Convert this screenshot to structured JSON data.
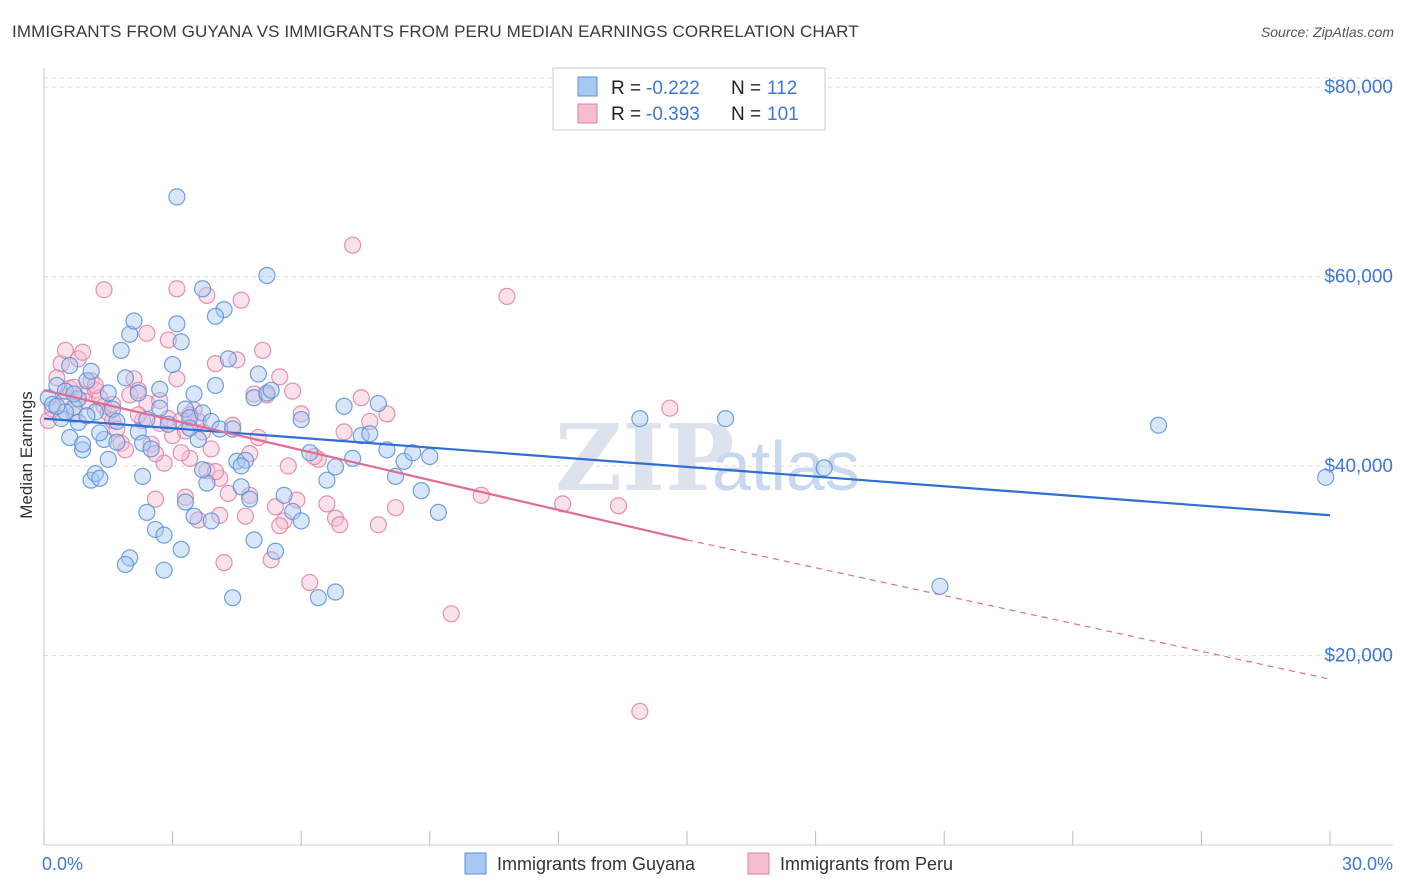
{
  "title": "IMMIGRANTS FROM GUYANA VS IMMIGRANTS FROM PERU MEDIAN EARNINGS CORRELATION CHART",
  "source": "Source: ZipAtlas.com",
  "watermark": {
    "part1": "ZIP",
    "part2": "atlas"
  },
  "legend": {
    "r_label": "R =",
    "n_label": "N =",
    "rows": [
      {
        "r": "-0.222",
        "n": "112"
      },
      {
        "r": "-0.393",
        "n": "101"
      }
    ]
  },
  "colors": {
    "guyana_fill": "#a9c8f2",
    "guyana_stroke": "#5a8fd8",
    "guyana_line": "#2f6fd0",
    "peru_fill": "#f6bcd0",
    "peru_stroke": "#e07fa2",
    "peru_line": "#e06d96",
    "grid": "#dddddd",
    "axis_text": "#3d78d6"
  },
  "chart_data": {
    "type": "scatter",
    "title": "IMMIGRANTS FROM GUYANA VS IMMIGRANTS FROM PERU MEDIAN EARNINGS CORRELATION CHART",
    "xlabel": "",
    "ylabel": "Median Earnings",
    "xlim": [
      0,
      30
    ],
    "ylim": [
      0,
      82000
    ],
    "x_tick_labels": [
      "0.0%",
      "30.0%"
    ],
    "y_ticks": [
      20000,
      40000,
      60000,
      80000
    ],
    "y_tick_labels": [
      "$20,000",
      "$40,000",
      "$60,000",
      "$80,000"
    ],
    "grid": true,
    "legend_position": "top-center",
    "series": [
      {
        "name": "Immigrants from Guyana",
        "r": -0.222,
        "n": 112,
        "trend": {
          "x": [
            0,
            30
          ],
          "y": [
            45000,
            34800
          ]
        },
        "points": [
          [
            0.1,
            47200
          ],
          [
            0.2,
            46500
          ],
          [
            0.3,
            48500
          ],
          [
            0.4,
            45000
          ],
          [
            0.5,
            47900
          ],
          [
            0.6,
            43000
          ],
          [
            0.7,
            46200
          ],
          [
            0.8,
            44600
          ],
          [
            0.9,
            41700
          ],
          [
            1.0,
            49000
          ],
          [
            1.1,
            38500
          ],
          [
            1.2,
            39200
          ],
          [
            1.3,
            38700
          ],
          [
            1.4,
            42800
          ],
          [
            1.5,
            47700
          ],
          [
            1.6,
            46000
          ],
          [
            1.7,
            44700
          ],
          [
            1.8,
            52200
          ],
          [
            1.9,
            49300
          ],
          [
            2.0,
            53900
          ],
          [
            2.1,
            55300
          ],
          [
            2.2,
            43600
          ],
          [
            2.3,
            42400
          ],
          [
            2.4,
            35100
          ],
          [
            2.5,
            41800
          ],
          [
            2.6,
            33300
          ],
          [
            2.7,
            48100
          ],
          [
            2.8,
            29000
          ],
          [
            2.9,
            44400
          ],
          [
            3.0,
            50700
          ],
          [
            3.1,
            55000
          ],
          [
            3.2,
            53100
          ],
          [
            3.3,
            46000
          ],
          [
            3.4,
            45100
          ],
          [
            3.5,
            47600
          ],
          [
            3.6,
            42800
          ],
          [
            3.7,
            45600
          ],
          [
            3.8,
            38200
          ],
          [
            3.9,
            44700
          ],
          [
            4.0,
            48500
          ],
          [
            3.1,
            68400
          ],
          [
            3.5,
            34700
          ],
          [
            3.3,
            36200
          ],
          [
            3.7,
            39600
          ],
          [
            4.1,
            43900
          ],
          [
            4.2,
            56500
          ],
          [
            4.3,
            51300
          ],
          [
            4.4,
            43900
          ],
          [
            3.9,
            34200
          ],
          [
            4.5,
            40500
          ],
          [
            4.6,
            37800
          ],
          [
            4.7,
            40600
          ],
          [
            4.8,
            36500
          ],
          [
            4.9,
            47200
          ],
          [
            5.0,
            49700
          ],
          [
            5.2,
            47700
          ],
          [
            5.4,
            31000
          ],
          [
            5.6,
            36900
          ],
          [
            5.8,
            35200
          ],
          [
            6.0,
            44900
          ],
          [
            6.2,
            41400
          ],
          [
            6.4,
            26100
          ],
          [
            6.6,
            38500
          ],
          [
            6.8,
            39900
          ],
          [
            7.0,
            46300
          ],
          [
            7.2,
            40800
          ],
          [
            7.4,
            43200
          ],
          [
            7.6,
            43400
          ],
          [
            7.8,
            46600
          ],
          [
            8.0,
            41700
          ],
          [
            8.2,
            38900
          ],
          [
            8.4,
            40500
          ],
          [
            8.6,
            41400
          ],
          [
            8.8,
            37400
          ],
          [
            9.0,
            41000
          ],
          [
            9.2,
            35100
          ],
          [
            5.2,
            60100
          ],
          [
            4.0,
            55800
          ],
          [
            3.7,
            58700
          ],
          [
            4.6,
            40000
          ],
          [
            4.9,
            32200
          ],
          [
            6.0,
            34200
          ],
          [
            2.0,
            30300
          ],
          [
            1.7,
            42500
          ],
          [
            1.9,
            29600
          ],
          [
            2.8,
            32700
          ],
          [
            3.2,
            31200
          ],
          [
            4.4,
            26100
          ],
          [
            5.3,
            48000
          ],
          [
            2.3,
            38900
          ],
          [
            2.4,
            44900
          ],
          [
            2.7,
            46100
          ],
          [
            1.2,
            45700
          ],
          [
            0.9,
            42300
          ],
          [
            1.5,
            40700
          ],
          [
            0.6,
            50600
          ],
          [
            0.8,
            47100
          ],
          [
            1.3,
            43500
          ],
          [
            1.0,
            45300
          ],
          [
            13.9,
            45000
          ],
          [
            15.9,
            45000
          ],
          [
            18.2,
            39800
          ],
          [
            20.9,
            27300
          ],
          [
            26.0,
            44300
          ],
          [
            29.9,
            38800
          ],
          [
            0.5,
            45700
          ],
          [
            0.3,
            46300
          ],
          [
            0.7,
            47600
          ],
          [
            1.1,
            50000
          ],
          [
            2.2,
            47700
          ],
          [
            6.8,
            26700
          ],
          [
            3.4,
            44000
          ]
        ]
      },
      {
        "name": "Immigrants from Peru",
        "r": -0.393,
        "n": 101,
        "trend": {
          "x": [
            0,
            15
          ],
          "y": [
            48000,
            32200
          ]
        },
        "trend_dashed": {
          "x": [
            15,
            30
          ],
          "y": [
            32200,
            17500
          ]
        },
        "points": [
          [
            0.1,
            44800
          ],
          [
            0.2,
            46000
          ],
          [
            0.3,
            49300
          ],
          [
            0.4,
            50800
          ],
          [
            0.5,
            47300
          ],
          [
            0.6,
            48200
          ],
          [
            0.7,
            45400
          ],
          [
            0.8,
            51300
          ],
          [
            0.9,
            47600
          ],
          [
            1.0,
            46800
          ],
          [
            1.1,
            49000
          ],
          [
            1.2,
            48000
          ],
          [
            1.3,
            47200
          ],
          [
            1.4,
            46300
          ],
          [
            1.5,
            45600
          ],
          [
            1.6,
            44800
          ],
          [
            1.7,
            43900
          ],
          [
            1.8,
            42400
          ],
          [
            1.9,
            41700
          ],
          [
            2.0,
            47500
          ],
          [
            2.1,
            49200
          ],
          [
            2.2,
            48000
          ],
          [
            2.3,
            44800
          ],
          [
            2.4,
            46600
          ],
          [
            2.5,
            42300
          ],
          [
            2.6,
            36500
          ],
          [
            2.7,
            44500
          ],
          [
            2.8,
            40300
          ],
          [
            2.9,
            45000
          ],
          [
            3.0,
            43200
          ],
          [
            3.1,
            49200
          ],
          [
            3.2,
            44800
          ],
          [
            3.3,
            43700
          ],
          [
            3.4,
            40800
          ],
          [
            3.5,
            45900
          ],
          [
            3.6,
            34300
          ],
          [
            3.7,
            43600
          ],
          [
            3.8,
            39500
          ],
          [
            3.9,
            41800
          ],
          [
            4.0,
            50800
          ],
          [
            4.1,
            38700
          ],
          [
            4.2,
            29800
          ],
          [
            4.3,
            37100
          ],
          [
            4.4,
            44300
          ],
          [
            4.5,
            51200
          ],
          [
            4.6,
            57500
          ],
          [
            4.7,
            34700
          ],
          [
            4.8,
            41300
          ],
          [
            4.9,
            47600
          ],
          [
            5.0,
            43000
          ],
          [
            5.1,
            52200
          ],
          [
            5.2,
            47500
          ],
          [
            5.3,
            30100
          ],
          [
            5.4,
            35700
          ],
          [
            5.5,
            49400
          ],
          [
            5.6,
            34200
          ],
          [
            5.7,
            40000
          ],
          [
            5.8,
            47900
          ],
          [
            5.9,
            36400
          ],
          [
            6.0,
            45500
          ],
          [
            6.2,
            27700
          ],
          [
            6.4,
            40700
          ],
          [
            6.6,
            36000
          ],
          [
            6.8,
            34500
          ],
          [
            7.0,
            43600
          ],
          [
            7.2,
            63300
          ],
          [
            7.4,
            47200
          ],
          [
            7.6,
            44700
          ],
          [
            7.8,
            33800
          ],
          [
            8.0,
            45500
          ],
          [
            8.2,
            35600
          ],
          [
            9.5,
            24400
          ],
          [
            10.2,
            36900
          ],
          [
            10.8,
            57900
          ],
          [
            12.1,
            36000
          ],
          [
            13.4,
            35800
          ],
          [
            13.9,
            14100
          ],
          [
            14.6,
            46100
          ],
          [
            2.6,
            41300
          ],
          [
            3.1,
            58700
          ],
          [
            3.3,
            36700
          ],
          [
            3.6,
            44700
          ],
          [
            4.1,
            34800
          ],
          [
            3.8,
            58000
          ],
          [
            2.9,
            53300
          ],
          [
            2.4,
            54000
          ],
          [
            1.4,
            58600
          ],
          [
            0.9,
            52000
          ],
          [
            1.2,
            48500
          ],
          [
            0.5,
            52200
          ],
          [
            0.7,
            48300
          ],
          [
            1.6,
            46500
          ],
          [
            2.2,
            45400
          ],
          [
            2.7,
            46900
          ],
          [
            3.4,
            45400
          ],
          [
            4.0,
            39400
          ],
          [
            4.8,
            36900
          ],
          [
            5.5,
            33700
          ],
          [
            6.3,
            41000
          ],
          [
            6.9,
            33800
          ],
          [
            3.2,
            41400
          ]
        ]
      }
    ]
  }
}
